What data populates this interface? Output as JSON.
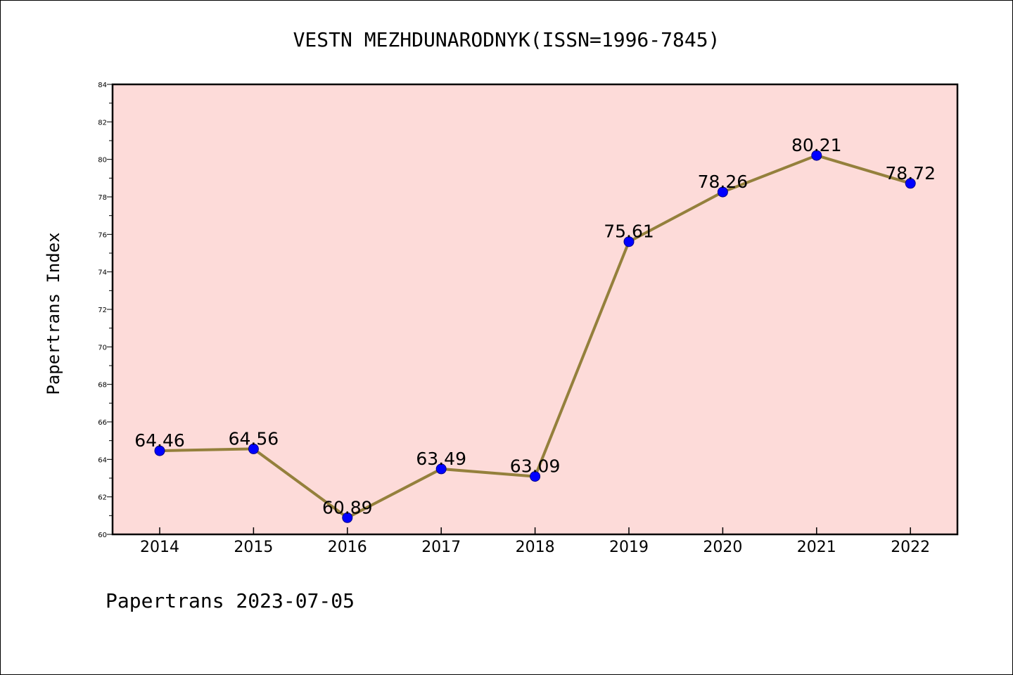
{
  "chart_data": {
    "type": "line",
    "title": "VESTN MEZHDUNARODNYK(ISSN=1996-7845)",
    "xlabel": "",
    "ylabel": "Papertrans Index",
    "footer": "Papertrans 2023-07-05",
    "categories": [
      "2014",
      "2015",
      "2016",
      "2017",
      "2018",
      "2019",
      "2020",
      "2021",
      "2022"
    ],
    "series": [
      {
        "values": [
          64.46,
          64.56,
          60.89,
          63.49,
          63.09,
          75.61,
          78.26,
          80.21,
          78.72
        ],
        "labels": [
          "64.46",
          "64.56",
          "60.89",
          "63.49",
          "63.09",
          "75.61",
          "78.26",
          "80.21",
          "78.72"
        ]
      }
    ],
    "ylim": [
      60,
      84
    ],
    "yticks": [
      60,
      62,
      64,
      66,
      68,
      70,
      72,
      74,
      76,
      78,
      80,
      82,
      84
    ],
    "grid": false,
    "colors": {
      "plot_background": "#fddbd9",
      "line": "#94803c",
      "marker": "#0000ff",
      "axis": "#000000"
    }
  }
}
